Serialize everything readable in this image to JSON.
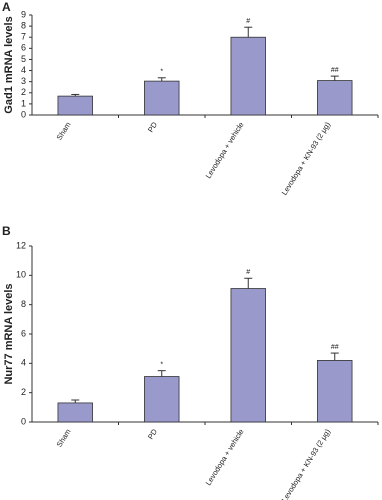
{
  "chart_data": [
    {
      "type": "bar",
      "panel": "A",
      "ylabel": "Gad1 mRNA levels",
      "categories": [
        "Sham",
        "PD",
        "Levodopa + vehicle",
        "Levodopa + KN-93 (2 μg)"
      ],
      "values": [
        1.7,
        3.05,
        7.0,
        3.1
      ],
      "errors": [
        0.15,
        0.3,
        0.9,
        0.4
      ],
      "annotations": [
        null,
        "*",
        "#",
        "##"
      ],
      "color": "#9999cc",
      "ylim": [
        0,
        9
      ],
      "yticks": [
        0,
        1,
        2,
        3,
        4,
        5,
        6,
        7,
        8,
        9
      ]
    },
    {
      "type": "bar",
      "panel": "B",
      "ylabel": "Nur77 mRNA levels",
      "categories": [
        "Sham",
        "PD",
        "Levodopa + vehicle",
        "Levodopa + KN-93 (2 μg)"
      ],
      "values": [
        1.3,
        3.1,
        9.1,
        4.2
      ],
      "errors": [
        0.2,
        0.4,
        0.7,
        0.5
      ],
      "annotations": [
        null,
        "*",
        "#",
        "##"
      ],
      "color": "#9999cc",
      "ylim": [
        0,
        12
      ],
      "yticks": [
        0,
        2,
        4,
        6,
        8,
        10,
        12
      ]
    }
  ]
}
